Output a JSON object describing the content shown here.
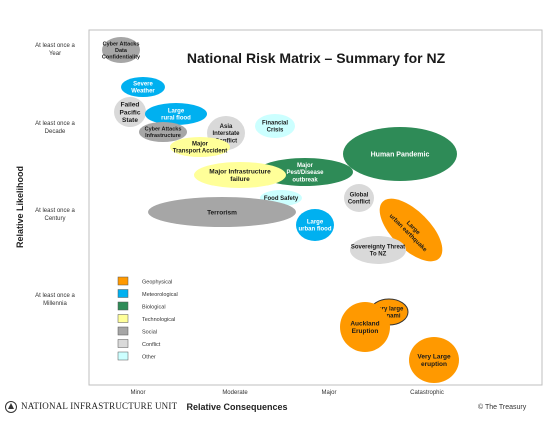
{
  "title": "National Risk Matrix – Summary for NZ",
  "axes": {
    "y_label": "Relative Likelihood",
    "x_label": "Relative Consequences",
    "y_ticks": [
      [
        "At least once a",
        "Year"
      ],
      [
        "At least once a",
        "Decade"
      ],
      [
        "At least once a",
        "Century"
      ],
      [
        "At least once a",
        "Millennia"
      ]
    ],
    "x_ticks": [
      "Minor",
      "Moderate",
      "Major",
      "Catastrophic"
    ]
  },
  "legend": [
    {
      "label": "Geophysical",
      "color": "#ff9900"
    },
    {
      "label": "Meteorological",
      "color": "#00b0f0"
    },
    {
      "label": "Biological",
      "color": "#2e8b57"
    },
    {
      "label": "Technological",
      "color": "#ffff99"
    },
    {
      "label": "Social",
      "color": "#a6a6a6"
    },
    {
      "label": "Conflict",
      "color": "#d9d9d9"
    },
    {
      "label": "Other",
      "color": "#ccffff"
    }
  ],
  "risks": [
    {
      "id": "cyber-attacks-data-confidentiality",
      "lines": [
        "Cyber Attacks",
        "Data",
        "Confidentiality"
      ],
      "category": "Social",
      "color": "#a6a6a6"
    },
    {
      "id": "severe-weather",
      "lines": [
        "Severe",
        "Weather"
      ],
      "category": "Meteorological",
      "color": "#00b0f0"
    },
    {
      "id": "failed-pacific-state",
      "lines": [
        "Failed",
        "Pacific",
        "State"
      ],
      "category": "Conflict",
      "color": "#d9d9d9"
    },
    {
      "id": "large-rural-flood",
      "lines": [
        "Large",
        "rural flood"
      ],
      "category": "Meteorological",
      "color": "#00b0f0"
    },
    {
      "id": "cyber-attacks-infrastructure",
      "lines": [
        "Cyber Attacks",
        "Infrastructure"
      ],
      "category": "Social",
      "color": "#a6a6a6"
    },
    {
      "id": "asia-interstate-conflict",
      "lines": [
        "Asia",
        "Interstate",
        "Conflict"
      ],
      "category": "Conflict",
      "color": "#d9d9d9"
    },
    {
      "id": "financial-crisis",
      "lines": [
        "Financial",
        "Crisis"
      ],
      "category": "Other",
      "color": "#ccffff"
    },
    {
      "id": "major-transport-accident",
      "lines": [
        "Major",
        "Transport Accident"
      ],
      "category": "Technological",
      "color": "#ffff99"
    },
    {
      "id": "human-pandemic",
      "lines": [
        "Human Pandemic"
      ],
      "category": "Biological",
      "color": "#2e8b57"
    },
    {
      "id": "major-pest-disease-outbreak",
      "lines": [
        "Major",
        "Pest/Disease",
        "outbreak"
      ],
      "category": "Biological",
      "color": "#2e8b57"
    },
    {
      "id": "major-infrastructure-failure",
      "lines": [
        "Major Infrastructure",
        "failure"
      ],
      "category": "Technological",
      "color": "#ffff99"
    },
    {
      "id": "global-conflict",
      "lines": [
        "Global",
        "Conflict"
      ],
      "category": "Conflict",
      "color": "#d9d9d9"
    },
    {
      "id": "food-safety",
      "lines": [
        "Food Safety"
      ],
      "category": "Other",
      "color": "#ccffff"
    },
    {
      "id": "terrorism",
      "lines": [
        "Terrorism"
      ],
      "category": "Social",
      "color": "#a6a6a6"
    },
    {
      "id": "large-urban-flood",
      "lines": [
        "Large",
        "urban flood"
      ],
      "category": "Meteorological",
      "color": "#00b0f0"
    },
    {
      "id": "large-urban-earthquake",
      "lines": [
        "Large",
        "urban earthquake"
      ],
      "category": "Geophysical",
      "color": "#ff9900"
    },
    {
      "id": "sovereignty-threat-to-nz",
      "lines": [
        "Sovereignty Threat",
        "To NZ"
      ],
      "category": "Conflict",
      "color": "#d9d9d9"
    },
    {
      "id": "very-large-tsunami",
      "lines": [
        "Very large",
        "tsunami"
      ],
      "category": "Geophysical",
      "color": "#ff9900"
    },
    {
      "id": "auckland-eruption",
      "lines": [
        "Auckland",
        "Eruption"
      ],
      "category": "Geophysical",
      "color": "#ff9900"
    },
    {
      "id": "very-large-eruption",
      "lines": [
        "Very Large",
        "eruption"
      ],
      "category": "Geophysical",
      "color": "#ff9900"
    }
  ],
  "footer": {
    "logo_text": "NATIONAL INFRASTRUCTURE UNIT",
    "copyright": "© The Treasury"
  }
}
